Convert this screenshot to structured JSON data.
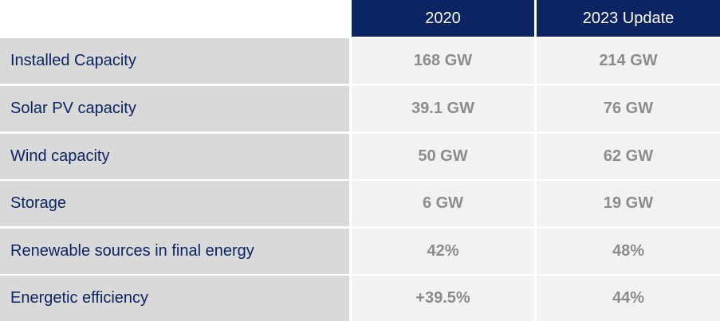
{
  "table": {
    "columns": [
      "",
      "2020",
      "2023 Update"
    ],
    "rows": [
      {
        "label": "Installed Capacity",
        "values": [
          "168 GW",
          "214 GW"
        ]
      },
      {
        "label": "Solar PV capacity",
        "values": [
          "39.1 GW",
          "76 GW"
        ]
      },
      {
        "label": "Wind capacity",
        "values": [
          "50 GW",
          "62 GW"
        ]
      },
      {
        "label": "Storage",
        "values": [
          "6 GW",
          "19 GW"
        ]
      },
      {
        "label": "Renewable sources in final energy",
        "values": [
          "42%",
          "48%"
        ]
      },
      {
        "label": "Energetic efficiency",
        "values": [
          "+39.5%",
          "44%"
        ]
      }
    ]
  },
  "colors": {
    "header_bg": "#0c2461",
    "header_text": "#ffffff",
    "label_bg": "#d9d9d9",
    "label_text": "#0c2461",
    "value_bg": "#f2f2f2",
    "value_text": "#8c8c8c"
  }
}
